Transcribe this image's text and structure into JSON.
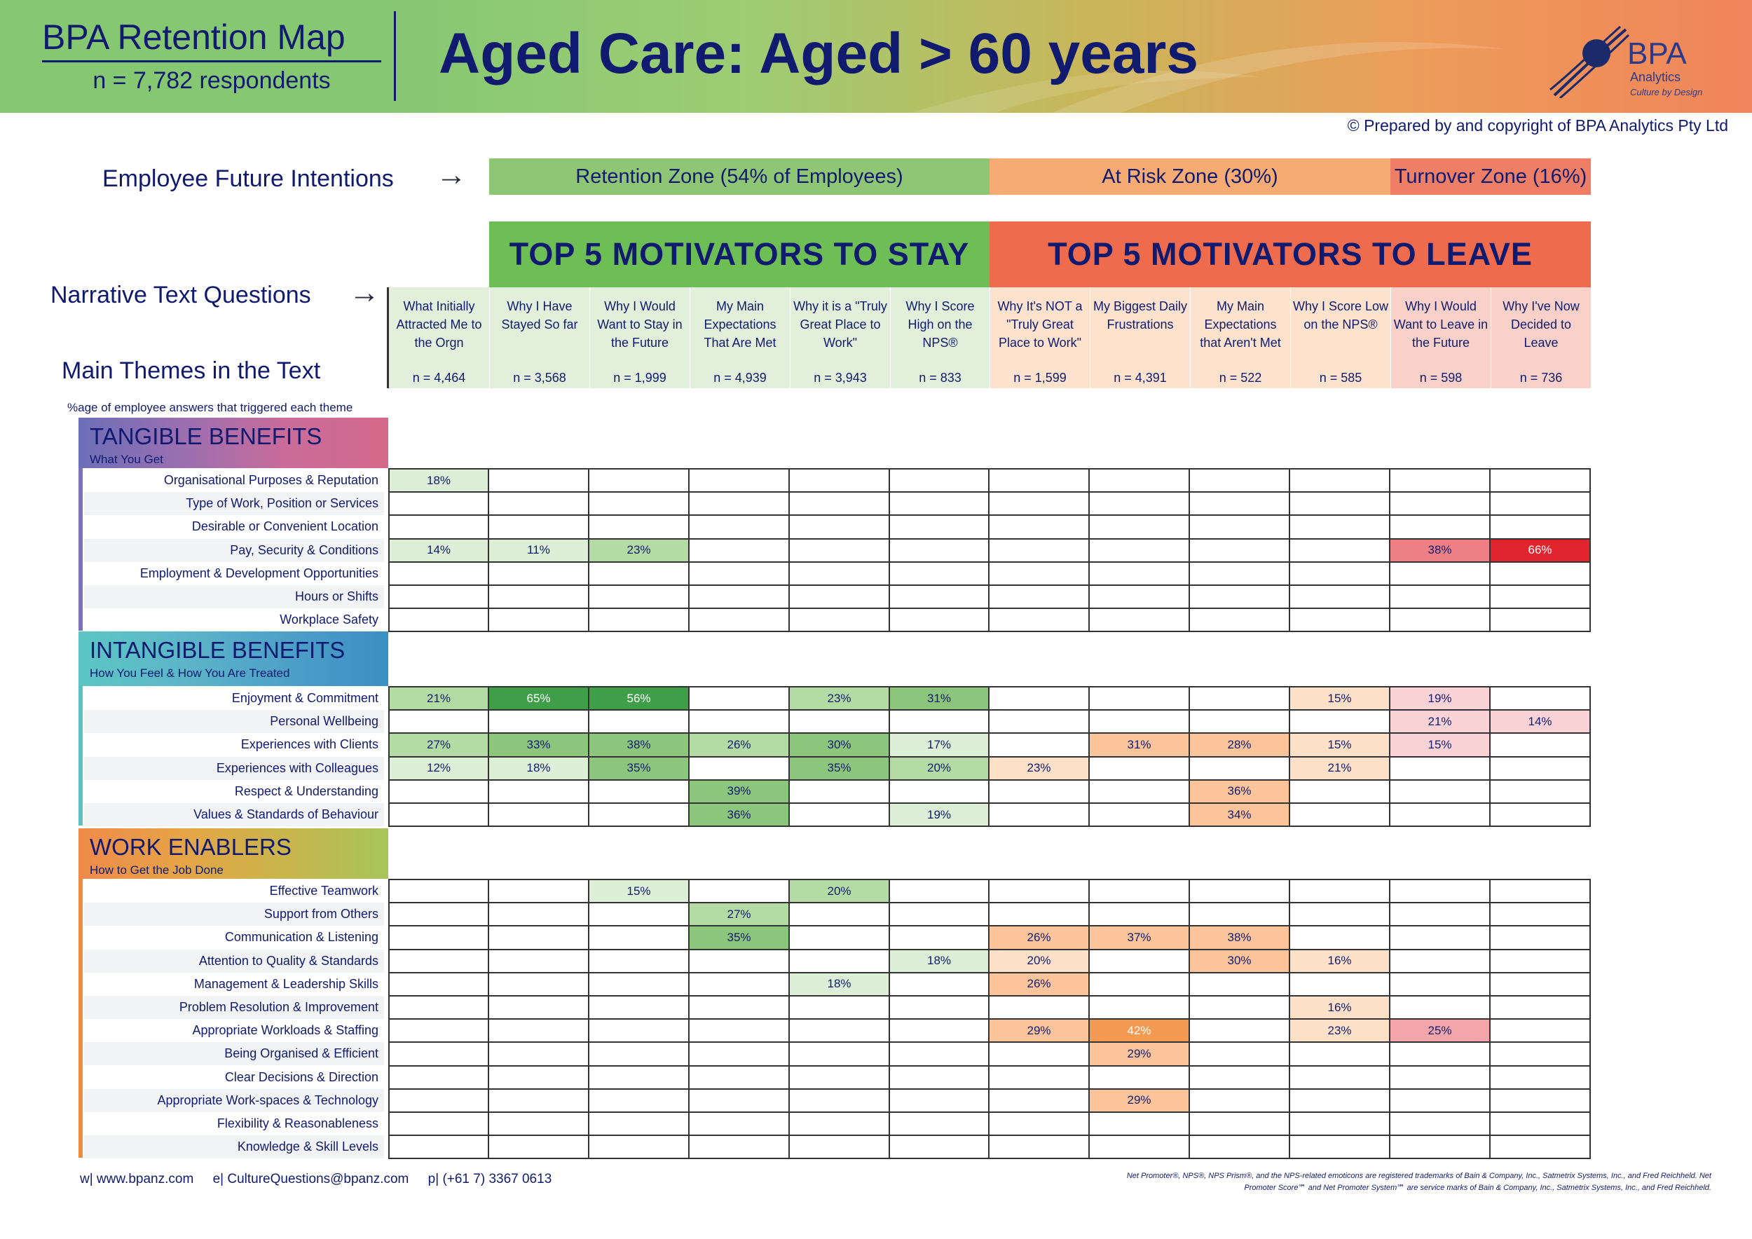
{
  "header": {
    "report_title": "BPA Retention Map",
    "respondents": "n = 7,782 respondents",
    "main_title": "Aged Care: Aged > 60 years",
    "logo_text": "BPA",
    "logo_sub": "Analytics",
    "logo_tag": "Culture by Design",
    "copyright": "© Prepared by and copyright of BPA Analytics Pty Ltd"
  },
  "labels": {
    "future_intentions": "Employee Future Intentions",
    "narrative_questions": "Narrative Text Questions",
    "main_themes": "Main Themes in the Text",
    "pct_note": "%age of employee answers that triggered each theme",
    "arrow": "→"
  },
  "zones": [
    {
      "label": "Retention Zone (54% of Employees)",
      "color": "#8fc675"
    },
    {
      "label": "At Risk Zone (30%)",
      "color": "#f6ab73"
    },
    {
      "label": "Turnover Zone (16%)",
      "color": "#ef7e67"
    }
  ],
  "headings": {
    "stay": "TOP 5 MOTIVATORS TO STAY",
    "leave": "TOP 5 MOTIVATORS TO LEAVE"
  },
  "questions": [
    {
      "text": "What Initially Attracted Me to the Orgn",
      "n": "n = 4,464"
    },
    {
      "text": "Why I Have Stayed So far",
      "n": "n = 3,568"
    },
    {
      "text": "Why I Would Want to Stay in the Future",
      "n": "n = 1,999"
    },
    {
      "text": "My Main Expectations That Are Met",
      "n": "n = 4,939"
    },
    {
      "text": "Why it is a \"Truly Great Place to Work\"",
      "n": "n = 3,943"
    },
    {
      "text": "Why I Score High on the NPS®",
      "n": "n = 833"
    },
    {
      "text": "Why It's NOT a \"Truly Great Place to Work\"",
      "n": "n = 1,599"
    },
    {
      "text": "My Biggest Daily Frustrations",
      "n": "n = 4,391"
    },
    {
      "text": "My Main Expectations that Aren't Met",
      "n": "n = 522"
    },
    {
      "text": "Why I Score Low on the NPS®",
      "n": "n = 585"
    },
    {
      "text": "Why I Would Want to Leave in the Future",
      "n": "n = 598"
    },
    {
      "text": "Why I've Now Decided to Leave",
      "n": "n = 736"
    }
  ],
  "sections": [
    {
      "title": "TANGIBLE BENEFITS",
      "subtitle": "What You Get",
      "rows": [
        {
          "label": "Organisational Purposes & Reputation",
          "values": [
            "18%",
            "",
            "",
            "",
            "",
            "",
            "",
            "",
            "",
            "",
            "",
            ""
          ]
        },
        {
          "label": "Type of Work, Position or Services",
          "values": [
            "",
            "",
            "",
            "",
            "",
            "",
            "",
            "",
            "",
            "",
            "",
            ""
          ]
        },
        {
          "label": "Desirable or Convenient Location",
          "values": [
            "",
            "",
            "",
            "",
            "",
            "",
            "",
            "",
            "",
            "",
            "",
            ""
          ]
        },
        {
          "label": "Pay, Security & Conditions",
          "values": [
            "14%",
            "11%",
            "23%",
            "",
            "",
            "",
            "",
            "",
            "",
            "",
            "38%",
            "66%"
          ]
        },
        {
          "label": "Employment & Development Opportunities",
          "values": [
            "",
            "",
            "",
            "",
            "",
            "",
            "",
            "",
            "",
            "",
            "",
            ""
          ]
        },
        {
          "label": "Hours or Shifts",
          "values": [
            "",
            "",
            "",
            "",
            "",
            "",
            "",
            "",
            "",
            "",
            "",
            ""
          ]
        },
        {
          "label": "Workplace Safety",
          "values": [
            "",
            "",
            "",
            "",
            "",
            "",
            "",
            "",
            "",
            "",
            "",
            ""
          ]
        }
      ]
    },
    {
      "title": "INTANGIBLE BENEFITS",
      "subtitle": "How You Feel & How You Are Treated",
      "rows": [
        {
          "label": "Enjoyment & Commitment",
          "values": [
            "21%",
            "65%",
            "56%",
            "",
            "23%",
            "31%",
            "",
            "",
            "",
            "15%",
            "19%",
            ""
          ]
        },
        {
          "label": "Personal Wellbeing",
          "values": [
            "",
            "",
            "",
            "",
            "",
            "",
            "",
            "",
            "",
            "",
            "21%",
            "14%"
          ]
        },
        {
          "label": "Experiences with Clients",
          "values": [
            "27%",
            "33%",
            "38%",
            "26%",
            "30%",
            "17%",
            "",
            "31%",
            "28%",
            "15%",
            "15%",
            ""
          ]
        },
        {
          "label": "Experiences with Colleagues",
          "values": [
            "12%",
            "18%",
            "35%",
            "",
            "35%",
            "20%",
            "23%",
            "",
            "",
            "21%",
            "",
            ""
          ]
        },
        {
          "label": "Respect & Understanding",
          "values": [
            "",
            "",
            "",
            "39%",
            "",
            "",
            "",
            "",
            "36%",
            "",
            "",
            ""
          ]
        },
        {
          "label": "Values & Standards of Behaviour",
          "values": [
            "",
            "",
            "",
            "36%",
            "",
            "19%",
            "",
            "",
            "34%",
            "",
            "",
            ""
          ]
        }
      ]
    },
    {
      "title": "WORK ENABLERS",
      "subtitle": "How to Get the Job Done",
      "rows": [
        {
          "label": "Effective Teamwork",
          "values": [
            "",
            "",
            "15%",
            "",
            "20%",
            "",
            "",
            "",
            "",
            "",
            "",
            ""
          ]
        },
        {
          "label": "Support from Others",
          "values": [
            "",
            "",
            "",
            "27%",
            "",
            "",
            "",
            "",
            "",
            "",
            "",
            ""
          ]
        },
        {
          "label": "Communication & Listening",
          "values": [
            "",
            "",
            "",
            "35%",
            "",
            "",
            "26%",
            "37%",
            "38%",
            "",
            "",
            ""
          ]
        },
        {
          "label": "Attention to Quality & Standards",
          "values": [
            "",
            "",
            "",
            "",
            "",
            "18%",
            "20%",
            "",
            "30%",
            "16%",
            "",
            ""
          ]
        },
        {
          "label": "Management & Leadership Skills",
          "values": [
            "",
            "",
            "",
            "",
            "18%",
            "",
            "26%",
            "",
            "",
            "",
            "",
            ""
          ]
        },
        {
          "label": "Problem Resolution & Improvement",
          "values": [
            "",
            "",
            "",
            "",
            "",
            "",
            "",
            "",
            "",
            "16%",
            "",
            ""
          ]
        },
        {
          "label": "Appropriate Workloads & Staffing",
          "values": [
            "",
            "",
            "",
            "",
            "",
            "",
            "29%",
            "42%",
            "",
            "23%",
            "25%",
            ""
          ]
        },
        {
          "label": "Being Organised & Efficient",
          "values": [
            "",
            "",
            "",
            "",
            "",
            "",
            "",
            "29%",
            "",
            "",
            "",
            ""
          ]
        },
        {
          "label": "Clear Decisions & Direction",
          "values": [
            "",
            "",
            "",
            "",
            "",
            "",
            "",
            "",
            "",
            "",
            "",
            ""
          ]
        },
        {
          "label": "Appropriate Work-spaces & Technology",
          "values": [
            "",
            "",
            "",
            "",
            "",
            "",
            "",
            "29%",
            "",
            "",
            "",
            ""
          ]
        },
        {
          "label": "Flexibility & Reasonableness",
          "values": [
            "",
            "",
            "",
            "",
            "",
            "",
            "",
            "",
            "",
            "",
            "",
            ""
          ]
        },
        {
          "label": "Knowledge & Skill Levels",
          "values": [
            "",
            "",
            "",
            "",
            "",
            "",
            "",
            "",
            "",
            "",
            "",
            ""
          ]
        }
      ]
    }
  ],
  "footer": {
    "web": "w|   www.bpanz.com",
    "email": "e|   CultureQuestions@bpanz.com",
    "phone": "p|   (+61 7) 3367 0613",
    "trademark": "Net Promoter®, NPS®, NPS Prism®, and the NPS-related emoticons are registered trademarks of Bain & Company, Inc., Satmetrix Systems, Inc., and Fred Reichheld. Net Promoter Score℠ and Net Promoter System℠ are service marks of Bain & Company, Inc., Satmetrix Systems, Inc., and Fred Reichheld."
  },
  "colors": {
    "navy": "#101a6e",
    "stay_green": "#6dbf55",
    "leave_orange": "#ee6c4d"
  }
}
